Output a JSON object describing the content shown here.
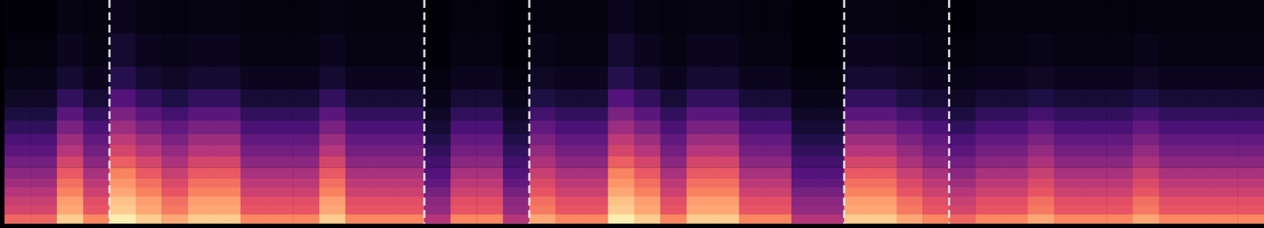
{
  "chart_data": {
    "type": "heatmap",
    "x": [
      0.5,
      1.5,
      2.5,
      3.5,
      4.5,
      5.5,
      6.5,
      7.5,
      8.5,
      9.5,
      10.5,
      11.5,
      12.5,
      13.5,
      14.5,
      15.5,
      16.5,
      17.5,
      18.5,
      19.5,
      20.5,
      21.5,
      22.5,
      23.5,
      24.5,
      25.5,
      26.5,
      27.5,
      28.5,
      29.5,
      30.5,
      31.5,
      32.5,
      33.5,
      34.5,
      35.5,
      36.5,
      37.5,
      38.5,
      39.5,
      40.5,
      41.5,
      42.5,
      43.5,
      44.5,
      45.5,
      46.5,
      47.5
    ],
    "y_edges": [
      0,
      4,
      8,
      12,
      16,
      20,
      25,
      30,
      35,
      40,
      46,
      52,
      60,
      70,
      85,
      100
    ],
    "cells": [
      [
        0.68,
        0.68,
        0.9,
        0.75,
        0.97,
        0.9,
        0.82,
        0.9,
        0.9,
        0.75,
        0.75,
        0.75,
        0.9,
        0.75,
        0.75,
        0.75,
        0.5,
        0.75,
        0.75,
        0.5,
        0.82,
        0.75,
        0.75,
        0.97,
        0.9,
        0.75,
        0.9,
        0.9,
        0.75,
        0.75,
        0.5,
        0.5,
        0.9,
        0.9,
        0.82,
        0.75,
        0.68,
        0.75,
        0.75,
        0.82,
        0.75,
        0.75,
        0.75,
        0.82,
        0.75,
        0.75,
        0.75,
        0.75
      ],
      [
        0.58,
        0.58,
        0.82,
        0.64,
        0.9,
        0.82,
        0.72,
        0.82,
        0.82,
        0.64,
        0.64,
        0.64,
        0.82,
        0.64,
        0.64,
        0.64,
        0.42,
        0.64,
        0.64,
        0.42,
        0.72,
        0.64,
        0.64,
        0.9,
        0.82,
        0.64,
        0.82,
        0.82,
        0.64,
        0.64,
        0.42,
        0.42,
        0.82,
        0.82,
        0.72,
        0.64,
        0.58,
        0.64,
        0.64,
        0.72,
        0.64,
        0.64,
        0.64,
        0.72,
        0.64,
        0.64,
        0.64,
        0.64
      ],
      [
        0.55,
        0.55,
        0.8,
        0.62,
        0.88,
        0.8,
        0.7,
        0.8,
        0.8,
        0.62,
        0.62,
        0.62,
        0.8,
        0.62,
        0.62,
        0.62,
        0.4,
        0.62,
        0.62,
        0.4,
        0.7,
        0.62,
        0.62,
        0.88,
        0.8,
        0.62,
        0.8,
        0.8,
        0.62,
        0.62,
        0.4,
        0.4,
        0.8,
        0.8,
        0.7,
        0.62,
        0.55,
        0.62,
        0.62,
        0.7,
        0.62,
        0.62,
        0.62,
        0.7,
        0.62,
        0.62,
        0.62,
        0.62
      ],
      [
        0.5,
        0.5,
        0.74,
        0.56,
        0.82,
        0.74,
        0.64,
        0.74,
        0.74,
        0.56,
        0.56,
        0.56,
        0.74,
        0.56,
        0.56,
        0.56,
        0.35,
        0.56,
        0.56,
        0.35,
        0.64,
        0.56,
        0.56,
        0.82,
        0.74,
        0.56,
        0.74,
        0.74,
        0.56,
        0.56,
        0.35,
        0.35,
        0.74,
        0.74,
        0.64,
        0.56,
        0.5,
        0.56,
        0.56,
        0.64,
        0.56,
        0.56,
        0.56,
        0.64,
        0.56,
        0.56,
        0.56,
        0.56
      ],
      [
        0.45,
        0.45,
        0.7,
        0.52,
        0.78,
        0.7,
        0.6,
        0.7,
        0.7,
        0.52,
        0.52,
        0.52,
        0.7,
        0.52,
        0.52,
        0.52,
        0.3,
        0.52,
        0.52,
        0.3,
        0.6,
        0.52,
        0.52,
        0.78,
        0.7,
        0.52,
        0.7,
        0.7,
        0.52,
        0.52,
        0.3,
        0.3,
        0.7,
        0.7,
        0.6,
        0.52,
        0.45,
        0.52,
        0.52,
        0.6,
        0.52,
        0.52,
        0.52,
        0.6,
        0.52,
        0.52,
        0.52,
        0.52
      ],
      [
        0.4,
        0.4,
        0.65,
        0.47,
        0.74,
        0.65,
        0.55,
        0.65,
        0.65,
        0.47,
        0.47,
        0.47,
        0.65,
        0.47,
        0.47,
        0.47,
        0.26,
        0.47,
        0.47,
        0.26,
        0.55,
        0.47,
        0.47,
        0.74,
        0.65,
        0.47,
        0.65,
        0.65,
        0.47,
        0.47,
        0.26,
        0.26,
        0.65,
        0.65,
        0.55,
        0.47,
        0.4,
        0.47,
        0.47,
        0.55,
        0.47,
        0.47,
        0.47,
        0.55,
        0.47,
        0.47,
        0.47,
        0.47
      ],
      [
        0.34,
        0.34,
        0.58,
        0.4,
        0.66,
        0.58,
        0.48,
        0.58,
        0.58,
        0.4,
        0.4,
        0.4,
        0.58,
        0.4,
        0.4,
        0.4,
        0.22,
        0.4,
        0.4,
        0.22,
        0.48,
        0.4,
        0.4,
        0.66,
        0.58,
        0.4,
        0.58,
        0.58,
        0.4,
        0.4,
        0.22,
        0.22,
        0.58,
        0.58,
        0.48,
        0.4,
        0.34,
        0.4,
        0.4,
        0.48,
        0.4,
        0.4,
        0.4,
        0.48,
        0.4,
        0.4,
        0.4,
        0.4
      ],
      [
        0.28,
        0.28,
        0.5,
        0.34,
        0.58,
        0.5,
        0.42,
        0.5,
        0.5,
        0.34,
        0.34,
        0.34,
        0.5,
        0.34,
        0.34,
        0.34,
        0.18,
        0.34,
        0.34,
        0.18,
        0.42,
        0.34,
        0.34,
        0.58,
        0.5,
        0.34,
        0.5,
        0.5,
        0.34,
        0.34,
        0.18,
        0.18,
        0.5,
        0.5,
        0.42,
        0.34,
        0.28,
        0.34,
        0.34,
        0.42,
        0.34,
        0.34,
        0.34,
        0.42,
        0.34,
        0.34,
        0.34,
        0.34
      ],
      [
        0.24,
        0.24,
        0.44,
        0.3,
        0.52,
        0.44,
        0.36,
        0.44,
        0.44,
        0.3,
        0.3,
        0.3,
        0.44,
        0.3,
        0.3,
        0.3,
        0.14,
        0.3,
        0.3,
        0.14,
        0.36,
        0.3,
        0.3,
        0.52,
        0.44,
        0.3,
        0.44,
        0.44,
        0.3,
        0.3,
        0.14,
        0.14,
        0.44,
        0.44,
        0.36,
        0.3,
        0.24,
        0.3,
        0.3,
        0.36,
        0.3,
        0.3,
        0.3,
        0.36,
        0.3,
        0.3,
        0.3,
        0.3
      ],
      [
        0.18,
        0.18,
        0.36,
        0.24,
        0.44,
        0.36,
        0.3,
        0.36,
        0.36,
        0.24,
        0.24,
        0.24,
        0.36,
        0.24,
        0.24,
        0.24,
        0.1,
        0.24,
        0.24,
        0.1,
        0.3,
        0.24,
        0.24,
        0.44,
        0.36,
        0.24,
        0.36,
        0.36,
        0.24,
        0.24,
        0.1,
        0.1,
        0.36,
        0.36,
        0.3,
        0.24,
        0.18,
        0.24,
        0.24,
        0.3,
        0.24,
        0.24,
        0.24,
        0.3,
        0.24,
        0.24,
        0.24,
        0.24
      ],
      [
        0.12,
        0.12,
        0.28,
        0.18,
        0.36,
        0.28,
        0.22,
        0.28,
        0.28,
        0.18,
        0.18,
        0.18,
        0.28,
        0.18,
        0.18,
        0.18,
        0.07,
        0.18,
        0.18,
        0.07,
        0.22,
        0.18,
        0.18,
        0.36,
        0.28,
        0.18,
        0.28,
        0.28,
        0.18,
        0.18,
        0.07,
        0.07,
        0.28,
        0.28,
        0.22,
        0.18,
        0.12,
        0.18,
        0.18,
        0.22,
        0.18,
        0.18,
        0.18,
        0.22,
        0.18,
        0.18,
        0.18,
        0.18
      ],
      [
        0.07,
        0.07,
        0.18,
        0.1,
        0.26,
        0.18,
        0.13,
        0.18,
        0.18,
        0.1,
        0.1,
        0.1,
        0.18,
        0.1,
        0.1,
        0.1,
        0.04,
        0.1,
        0.1,
        0.04,
        0.13,
        0.1,
        0.1,
        0.26,
        0.18,
        0.1,
        0.18,
        0.18,
        0.1,
        0.1,
        0.04,
        0.04,
        0.18,
        0.18,
        0.13,
        0.1,
        0.07,
        0.1,
        0.1,
        0.13,
        0.1,
        0.1,
        0.1,
        0.13,
        0.1,
        0.1,
        0.1,
        0.1
      ],
      [
        0.04,
        0.04,
        0.09,
        0.05,
        0.15,
        0.09,
        0.07,
        0.09,
        0.09,
        0.05,
        0.05,
        0.05,
        0.09,
        0.05,
        0.05,
        0.05,
        0.02,
        0.05,
        0.05,
        0.02,
        0.07,
        0.05,
        0.05,
        0.15,
        0.09,
        0.05,
        0.09,
        0.09,
        0.05,
        0.05,
        0.02,
        0.02,
        0.09,
        0.09,
        0.07,
        0.05,
        0.04,
        0.05,
        0.05,
        0.07,
        0.05,
        0.05,
        0.05,
        0.07,
        0.05,
        0.05,
        0.05,
        0.05
      ],
      [
        0.02,
        0.02,
        0.05,
        0.03,
        0.09,
        0.05,
        0.04,
        0.05,
        0.05,
        0.03,
        0.03,
        0.03,
        0.05,
        0.03,
        0.03,
        0.03,
        0.01,
        0.03,
        0.03,
        0.01,
        0.04,
        0.03,
        0.03,
        0.09,
        0.05,
        0.03,
        0.05,
        0.05,
        0.03,
        0.03,
        0.01,
        0.01,
        0.05,
        0.05,
        0.04,
        0.03,
        0.02,
        0.03,
        0.03,
        0.04,
        0.03,
        0.03,
        0.03,
        0.04,
        0.03,
        0.03,
        0.03,
        0.03
      ],
      [
        0.01,
        0.01,
        0.03,
        0.02,
        0.05,
        0.03,
        0.02,
        0.03,
        0.03,
        0.02,
        0.02,
        0.02,
        0.03,
        0.02,
        0.02,
        0.02,
        0.01,
        0.02,
        0.02,
        0.01,
        0.02,
        0.02,
        0.02,
        0.05,
        0.03,
        0.02,
        0.03,
        0.03,
        0.02,
        0.02,
        0.01,
        0.01,
        0.03,
        0.03,
        0.02,
        0.02,
        0.01,
        0.02,
        0.02,
        0.02,
        0.02,
        0.02,
        0.02,
        0.02,
        0.02,
        0.02,
        0.02,
        0.02
      ]
    ],
    "color_range": [
      0,
      1
    ],
    "vlines": [
      4,
      16,
      20,
      32,
      36
    ],
    "line_style": "dashed",
    "xlim": [
      0,
      48
    ],
    "ylim": [
      0,
      100
    ],
    "tick_labels": false,
    "grid": false
  }
}
